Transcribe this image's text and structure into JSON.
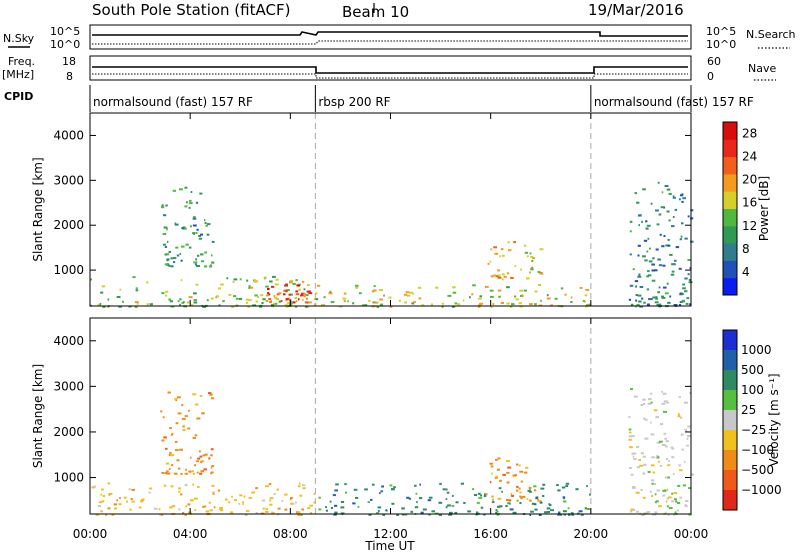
{
  "header": {
    "station": "South Pole Station (fitACF)",
    "beam": "Beam 10",
    "date": "19/Mar/2016"
  },
  "params": {
    "nsky_label": "N.Sky",
    "nsearch_label": "N.Search",
    "noise_ticks": [
      "10^5",
      "10^0"
    ],
    "freq_label": "Freq.",
    "freq_unit": "[MHz]",
    "freq_ticks": [
      "18",
      "8"
    ],
    "nave_label": "Nave",
    "nave_ticks": [
      "60",
      "0"
    ],
    "cpid_label": "CPID"
  },
  "cpid_modes": [
    {
      "label": "normalsound (fast) 157 RF",
      "start_hour": 0,
      "end_hour": 9
    },
    {
      "label": "rbsp 200 RF",
      "start_hour": 9,
      "end_hour": 20
    },
    {
      "label": "normalsound (fast) 157 RF",
      "start_hour": 20,
      "end_hour": 24
    }
  ],
  "chart_data": [
    {
      "type": "heatmap",
      "panel": "power",
      "xlabel": "Time UT",
      "ylabel": "Slant Range [km]",
      "xlim": [
        0,
        24
      ],
      "ylim": [
        200,
        4500
      ],
      "x_ticks": [
        "00:00",
        "04:00",
        "08:00",
        "12:00",
        "16:00",
        "20:00",
        "00:00"
      ],
      "y_ticks": [
        1000,
        2000,
        3000,
        4000
      ],
      "colorbar": {
        "label": "Power [dB]",
        "ticks": [
          "4",
          "8",
          "12",
          "16",
          "20",
          "24",
          "28"
        ],
        "range": [
          0,
          30
        ],
        "colors": [
          "#0a1cf0",
          "#2050b8",
          "#2f7d8f",
          "#2f9a55",
          "#4fb840",
          "#d6cf2a",
          "#f49a1e",
          "#f0601a",
          "#e8281e",
          "#d90c0c"
        ]
      },
      "regions": [
        {
          "t0": 0.0,
          "t1": 9.0,
          "r0": 200,
          "r1": 900,
          "value": 14
        },
        {
          "t0": 2.8,
          "t1": 4.9,
          "r0": 1100,
          "r1": 2900,
          "value": 10
        },
        {
          "t0": 7.0,
          "t1": 8.8,
          "r0": 300,
          "r1": 700,
          "value": 24
        },
        {
          "t0": 9.0,
          "t1": 20.0,
          "r0": 200,
          "r1": 700,
          "value": 16
        },
        {
          "t0": 15.8,
          "t1": 18.0,
          "r0": 800,
          "r1": 1700,
          "value": 18
        },
        {
          "t0": 21.5,
          "t1": 24.0,
          "r0": 200,
          "r1": 3000,
          "value": 8
        }
      ]
    },
    {
      "type": "heatmap",
      "panel": "velocity",
      "xlabel": "Time UT",
      "ylabel": "Slant Range [km]",
      "xlim": [
        0,
        24
      ],
      "ylim": [
        200,
        4500
      ],
      "x_ticks": [
        "00:00",
        "04:00",
        "08:00",
        "12:00",
        "16:00",
        "20:00",
        "00:00"
      ],
      "y_ticks": [
        1000,
        2000,
        3000,
        4000
      ],
      "colorbar": {
        "label": "Velocity [m s⁻¹]",
        "ticks": [
          "1000",
          "500",
          "100",
          "25",
          "−25",
          "−100",
          "−500",
          "−1000"
        ],
        "colors": [
          "#1c2fd0",
          "#2060a8",
          "#2e8a62",
          "#55c040",
          "#c8c8c8",
          "#f0c020",
          "#f08a18",
          "#f05a18",
          "#e02818"
        ]
      },
      "regions": [
        {
          "t0": 0.0,
          "t1": 9.0,
          "r0": 200,
          "r1": 900,
          "value": -100
        },
        {
          "t0": 2.8,
          "t1": 4.9,
          "r0": 1100,
          "r1": 2900,
          "value": -500
        },
        {
          "t0": 9.0,
          "t1": 20.0,
          "r0": 200,
          "r1": 900,
          "value": 100
        },
        {
          "t0": 15.8,
          "t1": 18.0,
          "r0": 500,
          "r1": 1500,
          "value": -500
        },
        {
          "t0": 21.5,
          "t1": 24.0,
          "r0": 200,
          "r1": 3000,
          "value": -25
        }
      ]
    }
  ]
}
